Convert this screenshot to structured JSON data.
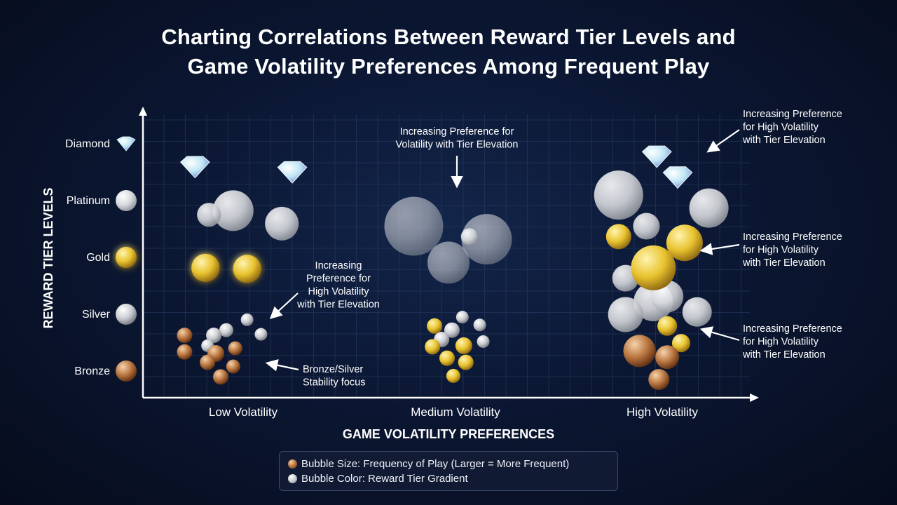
{
  "title_lines": [
    "Charting Correlations Between Reward Tier Levels and",
    "Game Volatility Preferences Among Frequent Play"
  ],
  "legend": {
    "size_label": "Bubble Size: Frequency of Play (Larger = More Frequent)",
    "color_label": "Bubble Color: Reward Tier Gradient"
  },
  "colors": {
    "bronze": "#b8743f",
    "silver": "#c9ccd1",
    "gold": "#e8c22e",
    "platinum": "#d7d9dd",
    "diamond": "#bfe6f5",
    "axis": "#ffffff",
    "grid": "#2a3e66"
  },
  "chart_data": {
    "type": "scatter",
    "xlabel": "GAME VOLATILITY PREFERENCES",
    "ylabel": "REWARD TIER LEVELS",
    "x_categories": [
      "Low Volatility",
      "Medium Volatility",
      "High Volatility"
    ],
    "y_categories": [
      "Bronze",
      "Silver",
      "Gold",
      "Platinum",
      "Diamond"
    ],
    "xlim": [
      0,
      8.8
    ],
    "ylim": [
      0,
      5.4
    ],
    "grid": true,
    "bubbles": [
      {
        "x": 0.75,
        "y": 4.45,
        "tier": "diamond",
        "size": 18
      },
      {
        "x": 2.15,
        "y": 4.35,
        "tier": "diamond",
        "size": 18
      },
      {
        "x": 7.4,
        "y": 4.65,
        "tier": "diamond",
        "size": 18
      },
      {
        "x": 7.7,
        "y": 4.25,
        "tier": "diamond",
        "size": 18
      },
      {
        "x": 1.3,
        "y": 3.6,
        "tier": "platinum",
        "size": 29
      },
      {
        "x": 0.95,
        "y": 3.52,
        "tier": "platinum",
        "size": 17
      },
      {
        "x": 2.0,
        "y": 3.35,
        "tier": "platinum",
        "size": 24
      },
      {
        "x": 0.9,
        "y": 2.5,
        "tier": "gold",
        "size": 20
      },
      {
        "x": 1.5,
        "y": 2.48,
        "tier": "gold",
        "size": 20
      },
      {
        "x": 1.2,
        "y": 1.3,
        "tier": "silver",
        "size": 10
      },
      {
        "x": 1.5,
        "y": 1.5,
        "tier": "silver",
        "size": 9
      },
      {
        "x": 1.02,
        "y": 1.2,
        "tier": "silver",
        "size": 11
      },
      {
        "x": 1.7,
        "y": 1.22,
        "tier": "silver",
        "size": 9
      },
      {
        "x": 0.93,
        "y": 1.0,
        "tier": "silver",
        "size": 9
      },
      {
        "x": 0.6,
        "y": 1.2,
        "tier": "bronze",
        "size": 11
      },
      {
        "x": 0.6,
        "y": 0.88,
        "tier": "bronze",
        "size": 11
      },
      {
        "x": 1.05,
        "y": 0.85,
        "tier": "bronze",
        "size": 12
      },
      {
        "x": 1.33,
        "y": 0.95,
        "tier": "bronze",
        "size": 10
      },
      {
        "x": 0.93,
        "y": 0.68,
        "tier": "bronze",
        "size": 11
      },
      {
        "x": 1.3,
        "y": 0.6,
        "tier": "bronze",
        "size": 10
      },
      {
        "x": 1.12,
        "y": 0.4,
        "tier": "bronze",
        "size": 11
      },
      {
        "x": 3.9,
        "y": 3.3,
        "tier": "platinum",
        "size": 42
      },
      {
        "x": 4.95,
        "y": 3.05,
        "tier": "platinum",
        "size": 36
      },
      {
        "x": 4.4,
        "y": 2.6,
        "tier": "platinum",
        "size": 30
      },
      {
        "x": 4.7,
        "y": 3.1,
        "tier": "platinum",
        "size": 12
      },
      {
        "x": 4.6,
        "y": 1.55,
        "tier": "silver",
        "size": 9
      },
      {
        "x": 4.45,
        "y": 1.3,
        "tier": "silver",
        "size": 11
      },
      {
        "x": 4.85,
        "y": 1.4,
        "tier": "silver",
        "size": 9
      },
      {
        "x": 4.3,
        "y": 1.12,
        "tier": "silver",
        "size": 11
      },
      {
        "x": 4.9,
        "y": 1.08,
        "tier": "silver",
        "size": 9
      },
      {
        "x": 4.2,
        "y": 1.38,
        "tier": "gold",
        "size": 11
      },
      {
        "x": 4.17,
        "y": 0.98,
        "tier": "gold",
        "size": 11
      },
      {
        "x": 4.62,
        "y": 1.0,
        "tier": "gold",
        "size": 12
      },
      {
        "x": 4.38,
        "y": 0.76,
        "tier": "gold",
        "size": 11
      },
      {
        "x": 4.65,
        "y": 0.68,
        "tier": "gold",
        "size": 11
      },
      {
        "x": 4.47,
        "y": 0.42,
        "tier": "gold",
        "size": 10
      },
      {
        "x": 6.85,
        "y": 3.9,
        "tier": "platinum",
        "size": 35
      },
      {
        "x": 8.15,
        "y": 3.65,
        "tier": "platinum",
        "size": 28
      },
      {
        "x": 7.25,
        "y": 3.3,
        "tier": "platinum",
        "size": 19
      },
      {
        "x": 6.95,
        "y": 2.3,
        "tier": "platinum",
        "size": 19
      },
      {
        "x": 7.35,
        "y": 1.85,
        "tier": "platinum",
        "size": 28
      },
      {
        "x": 7.55,
        "y": 1.95,
        "tier": "platinum",
        "size": 23
      },
      {
        "x": 6.95,
        "y": 1.6,
        "tier": "platinum",
        "size": 25
      },
      {
        "x": 7.98,
        "y": 1.65,
        "tier": "platinum",
        "size": 21
      },
      {
        "x": 6.85,
        "y": 3.1,
        "tier": "gold",
        "size": 18
      },
      {
        "x": 7.8,
        "y": 2.98,
        "tier": "gold",
        "size": 26
      },
      {
        "x": 7.35,
        "y": 2.5,
        "tier": "gold",
        "size": 32
      },
      {
        "x": 7.55,
        "y": 1.38,
        "tier": "gold",
        "size": 14
      },
      {
        "x": 7.75,
        "y": 1.05,
        "tier": "gold",
        "size": 13
      },
      {
        "x": 7.15,
        "y": 0.9,
        "tier": "bronze",
        "size": 23
      },
      {
        "x": 7.55,
        "y": 0.78,
        "tier": "bronze",
        "size": 17
      },
      {
        "x": 7.43,
        "y": 0.35,
        "tier": "bronze",
        "size": 15
      }
    ],
    "annotations": [
      {
        "text": [
          "Increasing Preference for",
          "Volatility with Tier Elevation"
        ]
      },
      {
        "text": [
          "Increasing Preference",
          "for High Volatility",
          "with Tier Elevation"
        ]
      },
      {
        "text": [
          "Increasing",
          "Preference for",
          "High Volatility",
          "with Tier Elevation"
        ]
      },
      {
        "text": [
          "Bronze/Silver",
          "Stability focus"
        ]
      },
      {
        "text": [
          "Increasing Preference",
          "for High Volatility",
          "with Tier Elevation"
        ]
      },
      {
        "text": [
          "Increasing Preference",
          "for High Volatility",
          "with Tier Elevation"
        ]
      }
    ]
  }
}
